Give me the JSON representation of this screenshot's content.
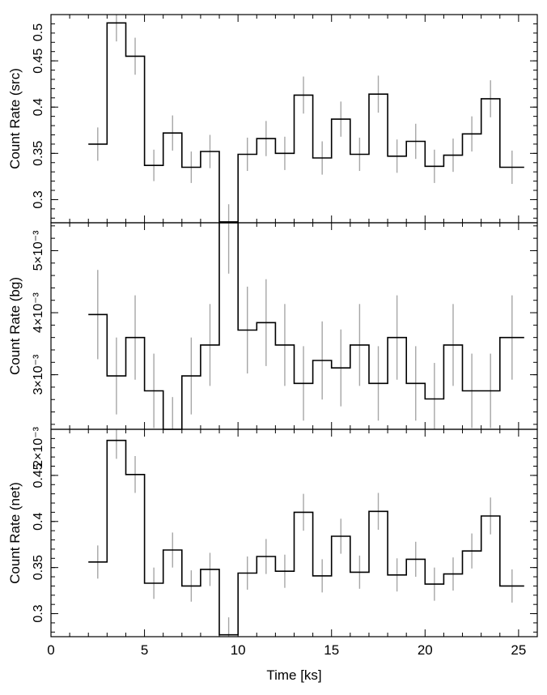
{
  "chart_data": [
    {
      "type": "line",
      "panel": "src",
      "ylabel": "Count Rate (src)",
      "xlim": [
        0,
        26
      ],
      "ylim": [
        0.275,
        0.5
      ],
      "yticks": [
        0.3,
        0.35,
        0.4,
        0.45,
        0.5
      ],
      "ytick_labels": [
        "0.3",
        "0.35",
        "0.4",
        "0.45",
        "0.5"
      ],
      "bin_edges": [
        2.0,
        3.0,
        4.0,
        5.0,
        6.0,
        7.0,
        8.0,
        9.0,
        10.0,
        11.0,
        12.0,
        13.0,
        14.0,
        15.0,
        16.0,
        17.0,
        18.0,
        19.0,
        20.0,
        21.0,
        22.0,
        23.0,
        24.0,
        25.3
      ],
      "values": [
        0.36,
        0.491,
        0.455,
        0.337,
        0.372,
        0.335,
        0.352,
        0.276,
        0.349,
        0.366,
        0.35,
        0.413,
        0.345,
        0.387,
        0.349,
        0.414,
        0.347,
        0.363,
        0.336,
        0.348,
        0.371,
        0.409,
        0.335
      ],
      "err": [
        0.018,
        0.02,
        0.02,
        0.017,
        0.019,
        0.017,
        0.018,
        0.019,
        0.018,
        0.019,
        0.018,
        0.02,
        0.018,
        0.019,
        0.018,
        0.02,
        0.018,
        0.019,
        0.018,
        0.018,
        0.019,
        0.02,
        0.018
      ]
    },
    {
      "type": "line",
      "panel": "bg",
      "ylabel": "Count Rate (bg)",
      "xlim": [
        0,
        26
      ],
      "ylim": [
        0.00212,
        0.00545
      ],
      "yticks": [
        0.002,
        0.003,
        0.004,
        0.005
      ],
      "ytick_labels": [
        "2×10⁻³",
        "3×10⁻³",
        "4×10⁻³",
        "5×10⁻³"
      ],
      "bin_edges": [
        2.0,
        3.0,
        4.0,
        5.0,
        6.0,
        7.0,
        8.0,
        9.0,
        10.0,
        11.0,
        12.0,
        13.0,
        14.0,
        15.0,
        16.0,
        17.0,
        18.0,
        19.0,
        20.0,
        21.0,
        22.0,
        23.0,
        24.0,
        25.3
      ],
      "values": [
        0.00397,
        0.00298,
        0.0036,
        0.00274,
        0.00212,
        0.00298,
        0.00348,
        0.00545,
        0.00372,
        0.00384,
        0.00348,
        0.00286,
        0.00323,
        0.00311,
        0.00348,
        0.00286,
        0.0036,
        0.00286,
        0.00261,
        0.00348,
        0.00274,
        0.00274,
        0.0036
      ],
      "err": [
        0.00072,
        0.00062,
        0.00068,
        0.0006,
        0.00052,
        0.00062,
        0.00066,
        0.00082,
        0.0007,
        0.0007,
        0.00066,
        0.0006,
        0.00063,
        0.00062,
        0.00066,
        0.0006,
        0.00068,
        0.0006,
        0.00058,
        0.00066,
        0.0006,
        0.0006,
        0.00068
      ]
    },
    {
      "type": "line",
      "panel": "net",
      "ylabel": "Count Rate (net)",
      "xlabel": "Time [ks]",
      "xlim": [
        0,
        26
      ],
      "ylim": [
        0.275,
        0.5
      ],
      "xticks": [
        0,
        5,
        10,
        15,
        20,
        25
      ],
      "xtick_labels": [
        "0",
        "5",
        "10",
        "15",
        "20",
        "25"
      ],
      "yticks": [
        0.3,
        0.35,
        0.4,
        0.45
      ],
      "ytick_labels": [
        "0.3",
        "0.35",
        "0.4",
        "0.45"
      ],
      "bin_edges": [
        2.0,
        3.0,
        4.0,
        5.0,
        6.0,
        7.0,
        8.0,
        9.0,
        10.0,
        11.0,
        12.0,
        13.0,
        14.0,
        15.0,
        16.0,
        17.0,
        18.0,
        19.0,
        20.0,
        21.0,
        22.0,
        23.0,
        24.0,
        25.3
      ],
      "values": [
        0.356,
        0.488,
        0.451,
        0.333,
        0.369,
        0.33,
        0.348,
        0.277,
        0.344,
        0.362,
        0.346,
        0.41,
        0.341,
        0.384,
        0.345,
        0.411,
        0.342,
        0.359,
        0.332,
        0.343,
        0.368,
        0.406,
        0.33
      ],
      "err": [
        0.018,
        0.02,
        0.02,
        0.017,
        0.019,
        0.017,
        0.018,
        0.019,
        0.018,
        0.019,
        0.018,
        0.02,
        0.018,
        0.019,
        0.018,
        0.02,
        0.018,
        0.019,
        0.018,
        0.018,
        0.019,
        0.02,
        0.018
      ]
    }
  ],
  "extra_tick_label": "2×10⁻³"
}
